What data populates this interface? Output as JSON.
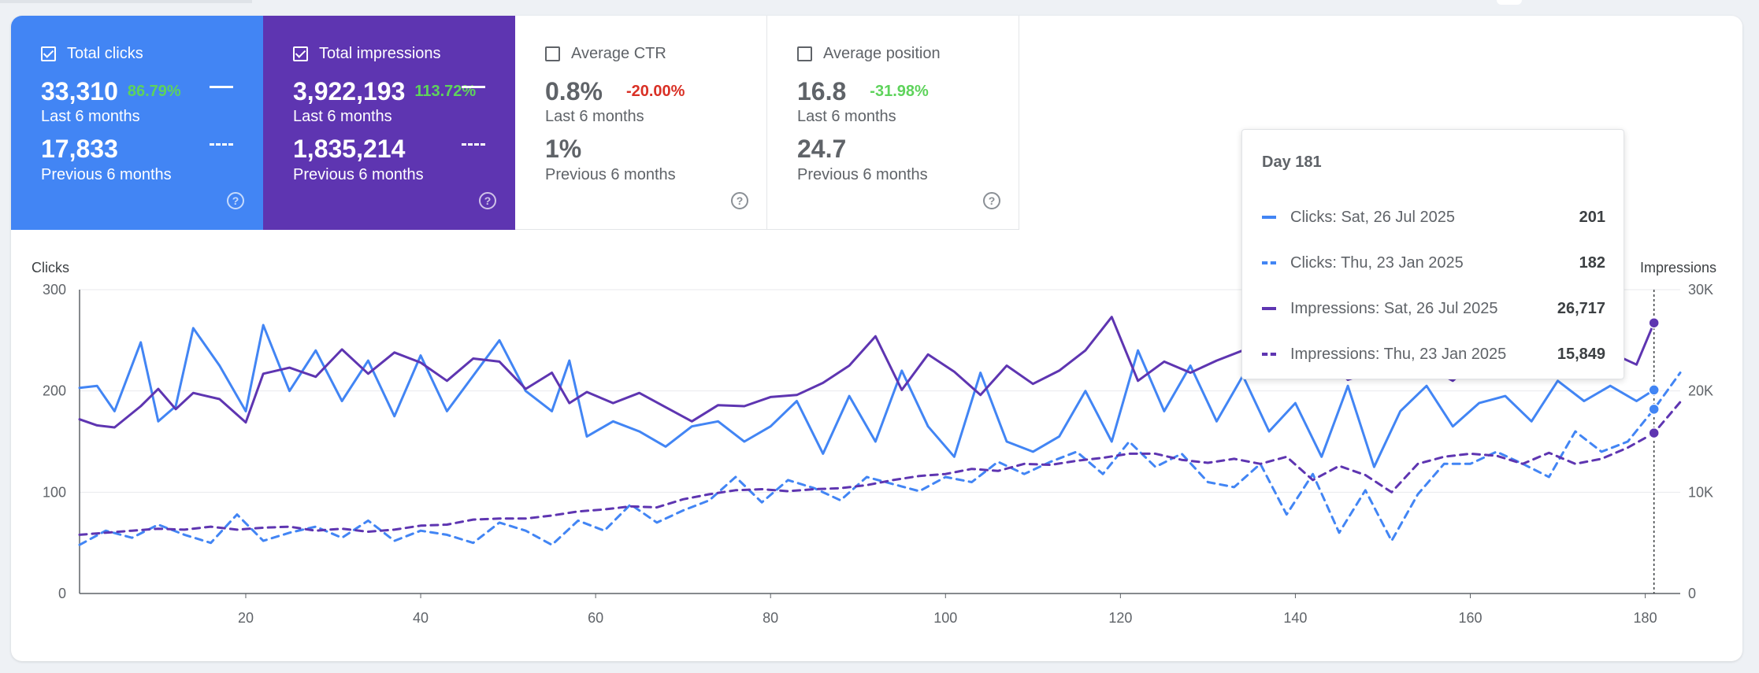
{
  "metrics": [
    {
      "label": "Total clicks",
      "value_current": "33,310",
      "delta": "86.79%",
      "period_current": "Last 6 months",
      "value_previous": "17,833",
      "period_previous": "Previous 6 months",
      "checked": true
    },
    {
      "label": "Total impressions",
      "value_current": "3,922,193",
      "delta": "113.72%",
      "period_current": "Last 6 months",
      "value_previous": "1,835,214",
      "period_previous": "Previous 6 months",
      "checked": true
    },
    {
      "label": "Average CTR",
      "value_current": "0.8%",
      "delta": "-20.00%",
      "period_current": "Last 6 months",
      "value_previous": "1%",
      "period_previous": "Previous 6 months",
      "checked": false
    },
    {
      "label": "Average position",
      "value_current": "16.8",
      "delta": "-31.98%",
      "period_current": "Last 6 months",
      "value_previous": "24.7",
      "period_previous": "Previous 6 months",
      "checked": false
    }
  ],
  "colors": {
    "clicks": "#4285f4",
    "impressions": "#5e35b1",
    "delta_positive": "#5ed35b",
    "delta_negative": "#d93025"
  },
  "icons": {
    "checkbox": "checkbox-icon",
    "help": "help-circle-icon"
  },
  "tooltip": {
    "title": "Day 181",
    "rows": [
      {
        "label": "Clicks: Sat, 26 Jul 2025",
        "value": "201",
        "style": "solid",
        "color": "#4285f4"
      },
      {
        "label": "Clicks: Thu, 23 Jan 2025",
        "value": "182",
        "style": "dashed",
        "color": "#4285f4"
      },
      {
        "label": "Impressions: Sat, 26 Jul 2025",
        "value": "26,717",
        "style": "solid",
        "color": "#5e35b1"
      },
      {
        "label": "Impressions: Thu, 23 Jan 2025",
        "value": "15,849",
        "style": "dashed",
        "color": "#5e35b1"
      }
    ]
  },
  "chart_data": {
    "type": "line",
    "left_axis_title": "Clicks",
    "right_axis_title": "Impressions",
    "left_ticks": [
      "0",
      "100",
      "200",
      "300"
    ],
    "right_ticks": [
      "0",
      "10K",
      "20K",
      "30K"
    ],
    "x_ticks": [
      20,
      40,
      60,
      80,
      100,
      120,
      140,
      160,
      180
    ],
    "xlim": [
      1,
      184
    ],
    "ylim_left": [
      0,
      300
    ],
    "ylim_right": [
      0,
      30000
    ],
    "grid": true,
    "highlight_day": 181,
    "series": [
      {
        "name": "Clicks: Last 6 months",
        "axis": "left",
        "style": "solid",
        "color": "#4285f4",
        "x": [
          1,
          3,
          5,
          8,
          10,
          12,
          14,
          17,
          20,
          22,
          25,
          28,
          31,
          34,
          37,
          40,
          43,
          46,
          49,
          52,
          55,
          57,
          59,
          62,
          65,
          68,
          71,
          74,
          77,
          80,
          83,
          86,
          89,
          92,
          95,
          98,
          101,
          104,
          107,
          110,
          113,
          116,
          119,
          122,
          125,
          128,
          131,
          134,
          137,
          140,
          143,
          146,
          149,
          152,
          155,
          158,
          161,
          164,
          167,
          170,
          173,
          176,
          179,
          181
        ],
        "y": [
          203,
          205,
          180,
          248,
          170,
          185,
          262,
          225,
          180,
          265,
          200,
          240,
          190,
          230,
          175,
          235,
          180,
          215,
          250,
          200,
          180,
          230,
          155,
          170,
          160,
          145,
          165,
          170,
          150,
          165,
          190,
          138,
          195,
          150,
          220,
          165,
          135,
          218,
          150,
          140,
          155,
          200,
          150,
          240,
          180,
          225,
          170,
          215,
          160,
          188,
          135,
          205,
          125,
          180,
          205,
          165,
          188,
          195,
          170,
          210,
          190,
          205,
          190,
          201
        ]
      },
      {
        "name": "Impressions: Last 6 months",
        "axis": "right",
        "style": "solid",
        "color": "#5e35b1",
        "x": [
          1,
          3,
          5,
          8,
          10,
          12,
          14,
          17,
          20,
          22,
          25,
          28,
          31,
          34,
          37,
          40,
          43,
          46,
          49,
          52,
          55,
          57,
          59,
          62,
          65,
          68,
          71,
          74,
          77,
          80,
          83,
          86,
          89,
          92,
          95,
          98,
          101,
          104,
          107,
          110,
          113,
          116,
          119,
          122,
          125,
          128,
          131,
          134,
          137,
          140,
          143,
          146,
          149,
          152,
          155,
          158,
          161,
          164,
          167,
          170,
          173,
          176,
          179,
          181
        ],
        "y": [
          17200,
          16600,
          16400,
          18500,
          20200,
          18200,
          19800,
          19200,
          16900,
          21700,
          22300,
          21400,
          24100,
          21700,
          23800,
          22800,
          21000,
          23200,
          22900,
          20200,
          21800,
          18800,
          19900,
          18800,
          19800,
          18400,
          17000,
          18600,
          18500,
          19400,
          19600,
          20800,
          22500,
          25400,
          20100,
          23600,
          21900,
          19600,
          22500,
          20700,
          22000,
          24000,
          27300,
          21000,
          22900,
          21800,
          23000,
          24000,
          21500,
          22800,
          23500,
          21100,
          22000,
          21900,
          22500,
          21000,
          23300,
          23800,
          21500,
          23000,
          22100,
          23800,
          22600,
          26717
        ]
      },
      {
        "name": "Clicks: Previous 6 months",
        "axis": "left",
        "style": "dashed",
        "color": "#4285f4",
        "x": [
          1,
          4,
          7,
          10,
          13,
          16,
          19,
          22,
          25,
          28,
          31,
          34,
          37,
          40,
          43,
          46,
          49,
          52,
          55,
          58,
          61,
          64,
          67,
          70,
          73,
          76,
          79,
          82,
          85,
          88,
          91,
          94,
          97,
          100,
          103,
          106,
          109,
          112,
          115,
          118,
          121,
          124,
          127,
          130,
          133,
          136,
          139,
          142,
          145,
          148,
          151,
          154,
          157,
          160,
          163,
          166,
          169,
          172,
          175,
          178,
          181,
          184
        ],
        "y": [
          48,
          62,
          55,
          68,
          58,
          50,
          78,
          52,
          60,
          66,
          55,
          72,
          52,
          62,
          58,
          50,
          70,
          62,
          48,
          72,
          62,
          88,
          70,
          82,
          92,
          115,
          90,
          112,
          104,
          92,
          115,
          108,
          101,
          115,
          110,
          130,
          118,
          130,
          140,
          118,
          150,
          125,
          138,
          110,
          105,
          128,
          78,
          118,
          60,
          102,
          52,
          98,
          128,
          128,
          140,
          128,
          115,
          160,
          140,
          150,
          182,
          218
        ]
      },
      {
        "name": "Impressions: Previous 6 months",
        "axis": "right",
        "style": "dashed",
        "color": "#5e35b1",
        "x": [
          1,
          4,
          7,
          10,
          13,
          16,
          19,
          22,
          25,
          28,
          31,
          34,
          37,
          40,
          43,
          46,
          49,
          52,
          55,
          58,
          61,
          64,
          67,
          70,
          73,
          76,
          79,
          82,
          85,
          88,
          91,
          94,
          97,
          100,
          103,
          106,
          109,
          112,
          115,
          118,
          121,
          124,
          127,
          130,
          133,
          136,
          139,
          142,
          145,
          148,
          151,
          154,
          157,
          160,
          163,
          166,
          169,
          172,
          175,
          178,
          181,
          184
        ],
        "y": [
          5800,
          6000,
          6200,
          6400,
          6300,
          6600,
          6300,
          6500,
          6600,
          6200,
          6400,
          6100,
          6300,
          6700,
          6800,
          7300,
          7400,
          7400,
          7700,
          8100,
          8300,
          8600,
          8500,
          9300,
          9800,
          10200,
          10300,
          10100,
          10300,
          10400,
          10700,
          11200,
          11600,
          11800,
          12300,
          12100,
          12800,
          12700,
          13100,
          13400,
          13800,
          13800,
          13200,
          12900,
          13300,
          12800,
          13500,
          11200,
          12600,
          11700,
          10000,
          12800,
          13500,
          13800,
          13600,
          12800,
          13900,
          12800,
          13300,
          14400,
          15849,
          18900
        ]
      }
    ]
  }
}
